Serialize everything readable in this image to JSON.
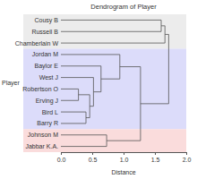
{
  "chart_data": {
    "type": "dendrogram",
    "title": "Dendrogram of Player",
    "x_label": "Distance",
    "y_label": "Player",
    "xlim": [
      0,
      2
    ],
    "xticks": [
      {
        "value": 0,
        "label": "0.0"
      },
      0.5,
      {
        "value": 1,
        "label": "1.0"
      },
      1.5,
      {
        "value": 2,
        "label": "2.0"
      }
    ],
    "tree": {
      "height": 1.72,
      "children": [
        {
          "height": 1.66,
          "color": "#ececec",
          "children": [
            {
              "height": 1.6,
              "children": [
                {
                  "name": "Cousy B"
                },
                {
                  "name": "Russell B"
                }
              ]
            },
            {
              "name": "Chamberlain W"
            }
          ]
        },
        {
          "height": 1.27,
          "children": [
            {
              "height": 0.94,
              "color": "#dcdcfa",
              "children": [
                {
                  "name": "Jordan M"
                },
                {
                  "height": 0.64,
                  "children": [
                    {
                      "name": "Baylor E"
                    },
                    {
                      "height": 0.52,
                      "children": [
                        {
                          "name": "West J"
                        },
                        {
                          "height": 0.46,
                          "children": [
                            {
                              "height": 0.28,
                              "children": [
                                {
                                  "name": "Robertson O"
                                },
                                {
                                  "name": "Erving J"
                                }
                              ]
                            },
                            {
                              "height": 0.4,
                              "children": [
                                {
                                  "name": "Bird L"
                                },
                                {
                                  "name": "Barry R"
                                }
                              ]
                            }
                          ]
                        }
                      ]
                    }
                  ]
                }
              ]
            },
            {
              "height": 0.73,
              "color": "#fadcdc",
              "children": [
                {
                  "name": "Johnson M"
                },
                {
                  "name": "Jabbar K.A."
                }
              ]
            }
          ]
        }
      ]
    }
  }
}
